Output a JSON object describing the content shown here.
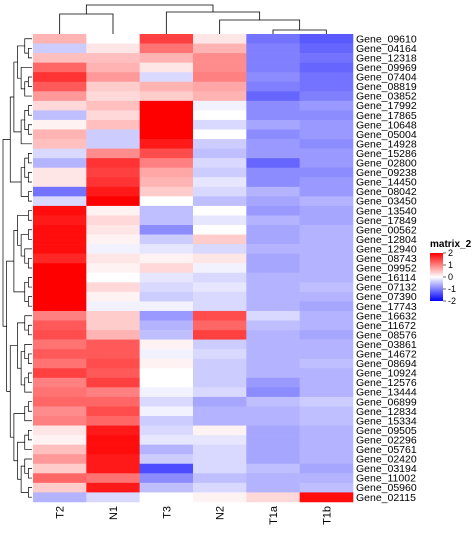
{
  "chart_data": {
    "type": "heatmap",
    "columns": [
      "T2",
      "N1",
      "T3",
      "N2",
      "T1a",
      "T1b"
    ],
    "rows": [
      "Gene_09610",
      "Gene_04164",
      "Gene_12318",
      "Gene_09969",
      "Gene_07404",
      "Gene_08819",
      "Gene_03852",
      "Gene_17992",
      "Gene_17865",
      "Gene_10648",
      "Gene_05004",
      "Gene_14928",
      "Gene_15286",
      "Gene_02800",
      "Gene_09238",
      "Gene_14450",
      "Gene_08042",
      "Gene_03450",
      "Gene_13540",
      "Gene_17849",
      "Gene_00562",
      "Gene_12804",
      "Gene_12940",
      "Gene_08743",
      "Gene_09952",
      "Gene_16114",
      "Gene_07132",
      "Gene_07390",
      "Gene_17743",
      "Gene_16632",
      "Gene_11672",
      "Gene_08576",
      "Gene_03861",
      "Gene_14672",
      "Gene_08694",
      "Gene_10924",
      "Gene_12576",
      "Gene_13444",
      "Gene_06899",
      "Gene_12834",
      "Gene_15334",
      "Gene_09505",
      "Gene_02296",
      "Gene_05761",
      "Gene_02420",
      "Gene_03194",
      "Gene_11002",
      "Gene_05960",
      "Gene_02115"
    ],
    "values": [
      [
        0.6,
        0.0,
        1.5,
        0.2,
        -1.1,
        -1.3
      ],
      [
        -0.4,
        0.2,
        1.1,
        0.6,
        -1.0,
        -1.2
      ],
      [
        0.5,
        0.5,
        0.6,
        0.9,
        -1.0,
        -1.1
      ],
      [
        1.2,
        0.6,
        0.2,
        0.9,
        -1.0,
        -1.2
      ],
      [
        1.6,
        0.8,
        -0.3,
        1.0,
        -0.9,
        -1.1
      ],
      [
        1.3,
        0.4,
        0.6,
        0.7,
        -1.0,
        -1.1
      ],
      [
        0.8,
        0.3,
        0.4,
        0.6,
        -1.2,
        -1.0
      ],
      [
        0.3,
        0.5,
        2.0,
        -0.1,
        -0.9,
        -0.8
      ],
      [
        -0.5,
        0.3,
        2.1,
        0.0,
        -0.9,
        -0.9
      ],
      [
        0.1,
        0.5,
        2.1,
        -0.3,
        -0.7,
        -0.8
      ],
      [
        0.6,
        -0.4,
        2.1,
        0.0,
        -0.9,
        -0.8
      ],
      [
        0.5,
        -0.4,
        1.8,
        -0.4,
        -0.8,
        -0.9
      ],
      [
        -0.3,
        0.9,
        1.4,
        -0.5,
        -0.8,
        -0.8
      ],
      [
        -0.6,
        1.6,
        1.0,
        -0.3,
        -1.2,
        -0.8
      ],
      [
        0.2,
        1.5,
        0.7,
        -0.4,
        -0.9,
        -0.9
      ],
      [
        0.2,
        1.6,
        0.6,
        -0.2,
        -0.9,
        -0.8
      ],
      [
        -1.1,
        1.8,
        0.4,
        -0.3,
        -0.6,
        -0.8
      ],
      [
        -0.3,
        2.1,
        0.0,
        -0.5,
        -0.7,
        -0.6
      ],
      [
        1.9,
        0.1,
        -0.5,
        0.0,
        -0.8,
        -0.7
      ],
      [
        1.8,
        0.3,
        -0.5,
        -0.2,
        -0.6,
        -0.7
      ],
      [
        1.9,
        0.2,
        -0.9,
        0.0,
        -0.7,
        -0.6
      ],
      [
        1.9,
        0.1,
        -0.4,
        0.4,
        -0.7,
        -0.6
      ],
      [
        1.9,
        -0.1,
        -0.2,
        -0.3,
        -0.6,
        -0.6
      ],
      [
        1.7,
        0.2,
        0.1,
        0.2,
        -0.7,
        -0.6
      ],
      [
        2.0,
        0.1,
        0.3,
        -0.1,
        -0.7,
        -0.6
      ],
      [
        2.1,
        0.0,
        -0.2,
        -0.3,
        -0.6,
        -0.6
      ],
      [
        2.1,
        0.3,
        -0.3,
        -0.2,
        -0.6,
        -0.5
      ],
      [
        2.2,
        0.1,
        -0.4,
        -0.3,
        -0.6,
        -0.6
      ],
      [
        2.1,
        -0.1,
        -0.1,
        -0.3,
        -0.6,
        -0.7
      ],
      [
        1.0,
        0.4,
        -0.8,
        1.4,
        -0.3,
        -0.6
      ],
      [
        1.3,
        0.4,
        -0.6,
        1.2,
        -0.5,
        -0.6
      ],
      [
        1.4,
        0.6,
        -0.5,
        1.5,
        -0.6,
        -0.7
      ],
      [
        1.1,
        1.3,
        0.1,
        -0.4,
        -0.6,
        -0.6
      ],
      [
        1.3,
        1.3,
        -0.1,
        -0.3,
        -0.6,
        -0.6
      ],
      [
        1.1,
        1.4,
        0.1,
        -0.4,
        -0.6,
        -0.5
      ],
      [
        1.5,
        1.3,
        0.0,
        -0.4,
        -0.6,
        -0.6
      ],
      [
        1.0,
        1.5,
        0.0,
        -0.4,
        -0.8,
        -0.6
      ],
      [
        1.1,
        1.0,
        -0.1,
        -0.3,
        -0.9,
        -0.6
      ],
      [
        1.2,
        1.2,
        -0.3,
        -0.7,
        -0.5,
        -0.4
      ],
      [
        0.9,
        1.4,
        -0.1,
        -0.6,
        -0.6,
        -0.5
      ],
      [
        1.0,
        1.2,
        -0.4,
        -0.6,
        -0.6,
        -0.5
      ],
      [
        0.2,
        1.8,
        -0.3,
        0.1,
        -0.7,
        -0.6
      ],
      [
        0.1,
        1.9,
        -0.2,
        -0.2,
        -0.7,
        -0.6
      ],
      [
        0.5,
        1.9,
        -0.6,
        -0.3,
        -0.7,
        -0.6
      ],
      [
        0.8,
        1.8,
        -0.4,
        -0.3,
        -0.7,
        -0.6
      ],
      [
        0.4,
        1.8,
        -1.4,
        -0.3,
        -0.5,
        -0.7
      ],
      [
        1.2,
        1.1,
        -0.9,
        -0.5,
        -0.6,
        -0.6
      ],
      [
        0.4,
        1.8,
        -0.5,
        -0.3,
        -0.6,
        -0.5
      ],
      [
        -0.6,
        -0.3,
        0.0,
        0.1,
        0.3,
        1.9
      ]
    ],
    "legend": {
      "title": "matrix_2",
      "ticks": [
        2,
        1,
        0,
        -1,
        -2
      ],
      "ticklabels": [
        "2",
        "1",
        "0",
        "-1",
        "-2"
      ],
      "colors": {
        "high": "#ff0000",
        "mid": "#ffffff",
        "low": "#0000ff"
      },
      "placement": "right"
    },
    "dendrogram": {
      "rows": true,
      "columns": true
    }
  }
}
